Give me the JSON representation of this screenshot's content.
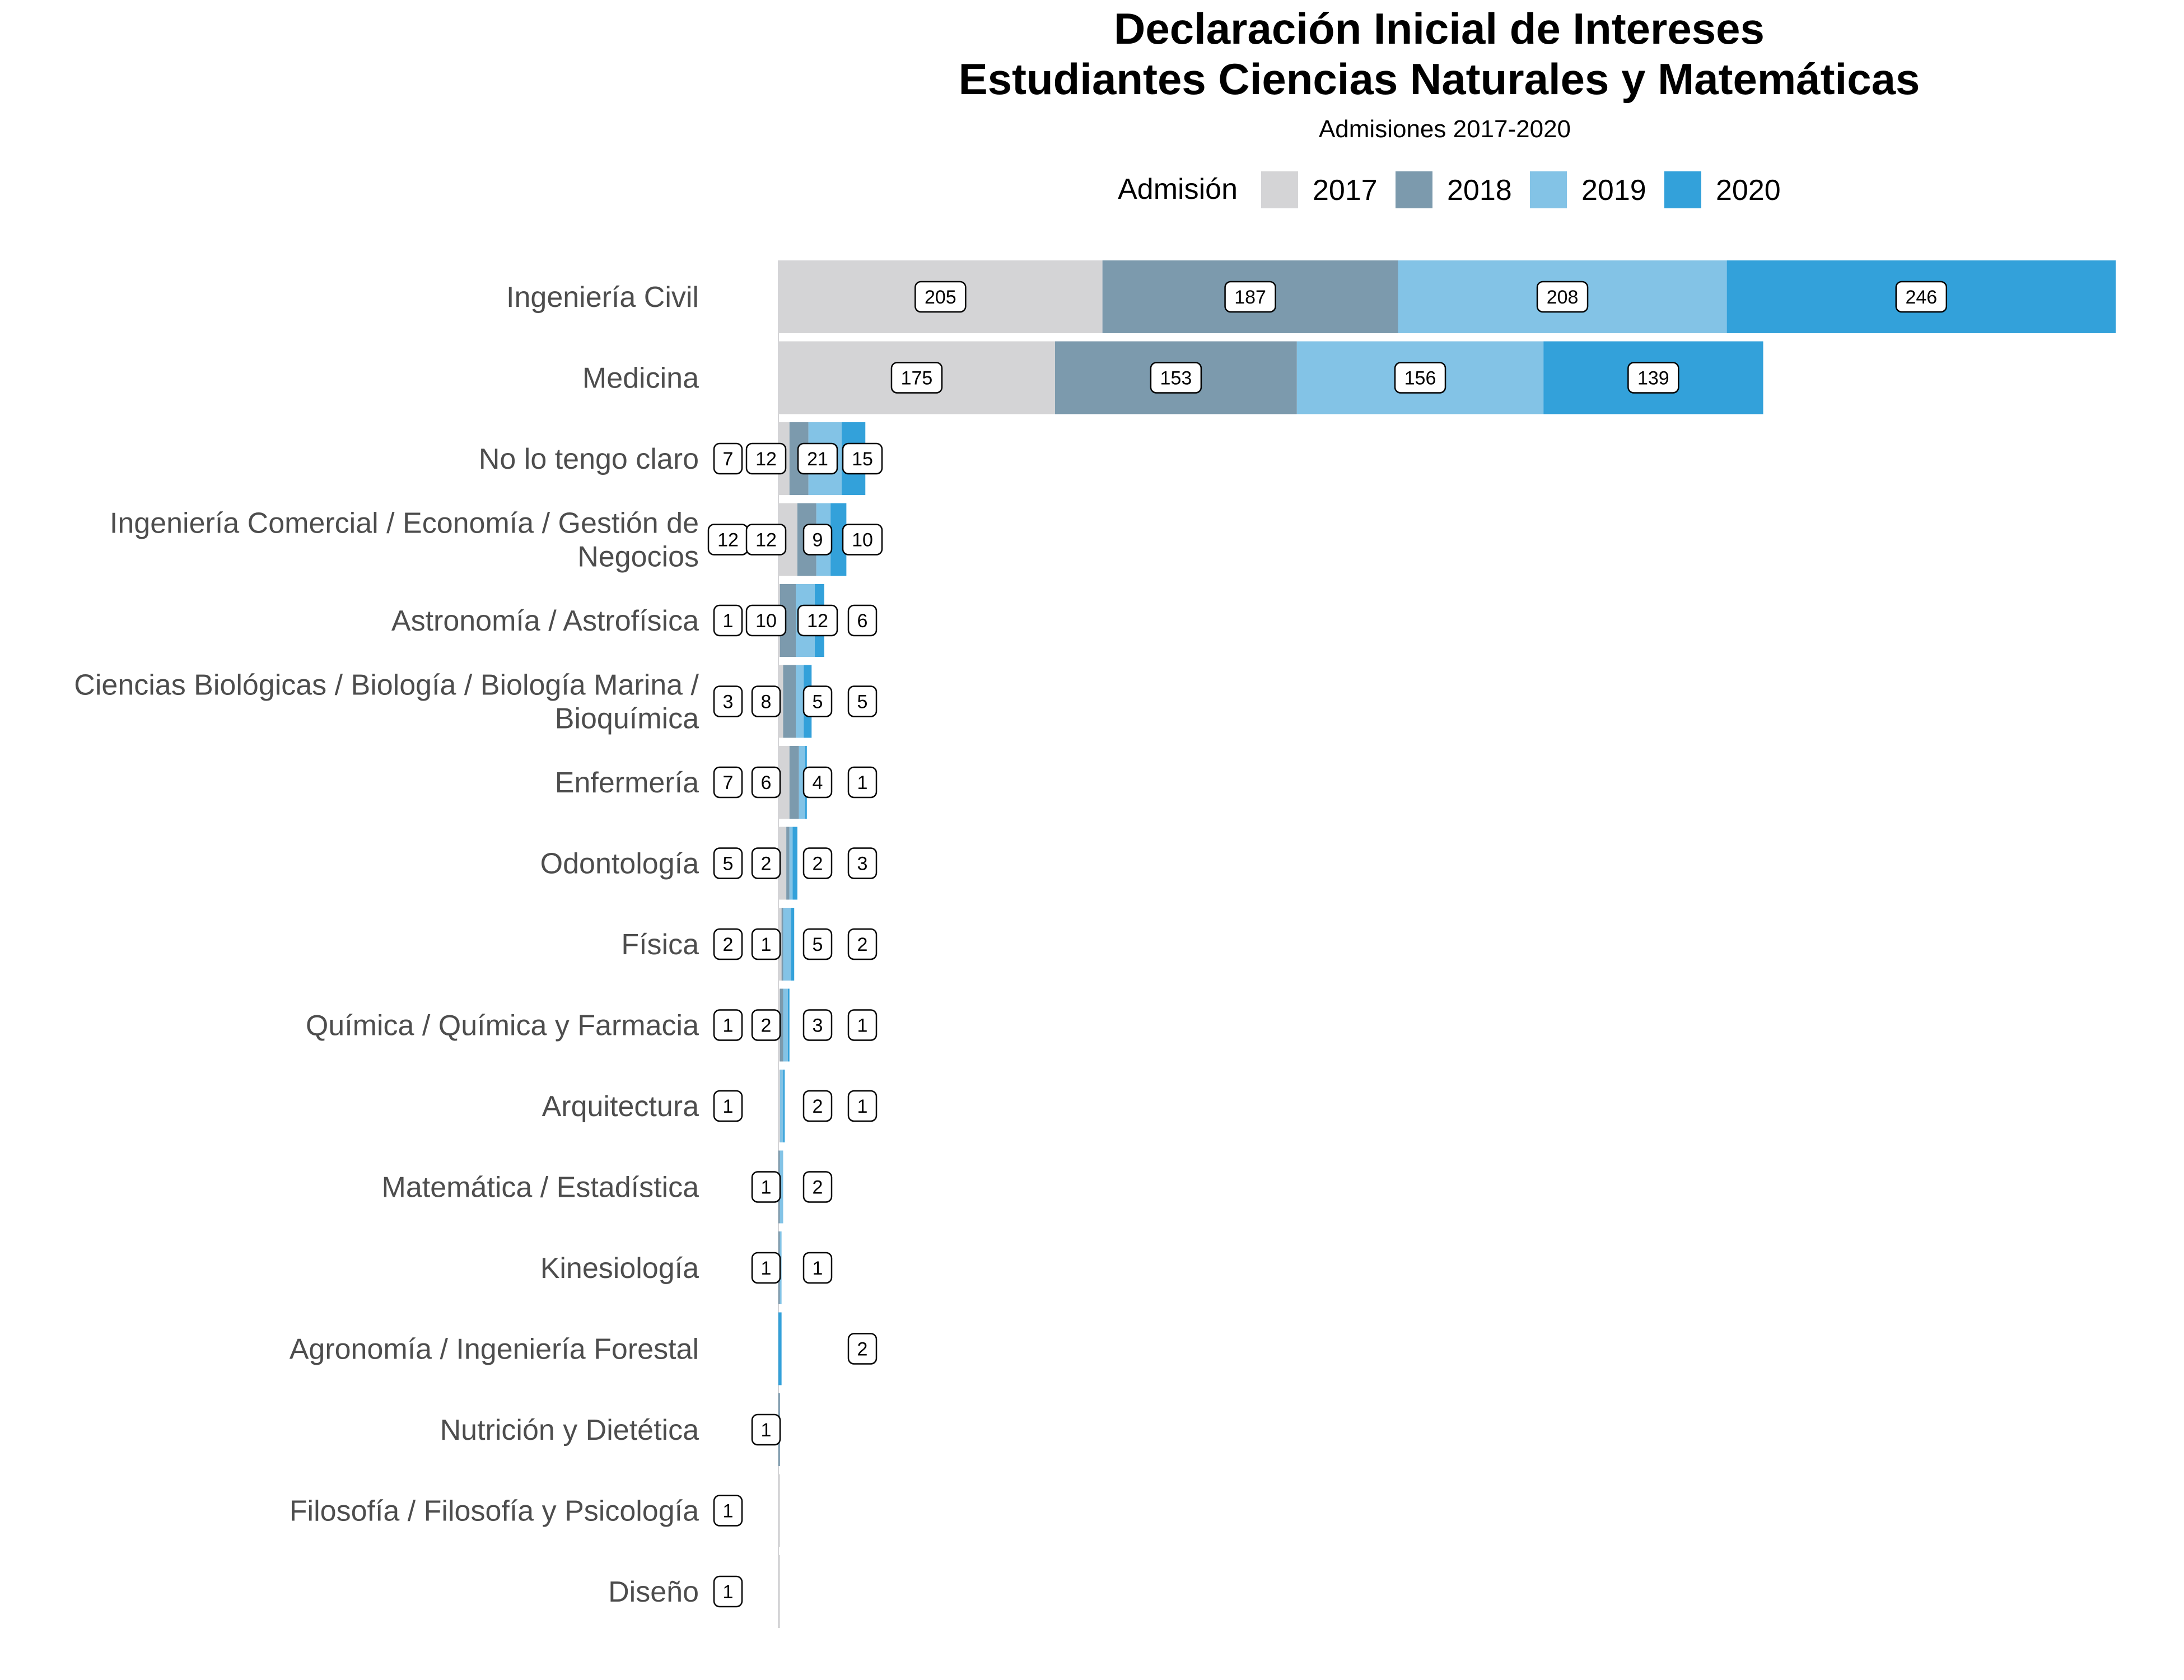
{
  "chart_data": {
    "type": "bar",
    "orientation": "horizontal",
    "stacked": true,
    "title": [
      "Declaración Inicial de Intereses",
      "Estudiantes Ciencias Naturales y Matemáticas"
    ],
    "subtitle": "Admisiones 2017-2020",
    "legend": {
      "title": "Admisión",
      "position": "top"
    },
    "series": [
      {
        "name": "2017",
        "color": "#d4d4d6"
      },
      {
        "name": "2018",
        "color": "#7c9aad"
      },
      {
        "name": "2019",
        "color": "#83c3e6"
      },
      {
        "name": "2020",
        "color": "#33a1da"
      }
    ],
    "categories": [
      {
        "label": [
          "Ingeniería Civil"
        ],
        "values": [
          205,
          187,
          208,
          246
        ]
      },
      {
        "label": [
          "Medicina"
        ],
        "values": [
          175,
          153,
          156,
          139
        ]
      },
      {
        "label": [
          "No lo tengo claro"
        ],
        "values": [
          7,
          12,
          21,
          15
        ]
      },
      {
        "label": [
          "Ingeniería Comercial / Economía / Gestión de",
          "Negocios"
        ],
        "values": [
          12,
          12,
          9,
          10
        ]
      },
      {
        "label": [
          "Astronomía / Astrofísica"
        ],
        "values": [
          1,
          10,
          12,
          6
        ]
      },
      {
        "label": [
          "Ciencias Biológicas / Biología / Biología Marina /",
          "Bioquímica"
        ],
        "values": [
          3,
          8,
          5,
          5
        ]
      },
      {
        "label": [
          "Enfermería"
        ],
        "values": [
          7,
          6,
          4,
          1
        ]
      },
      {
        "label": [
          "Odontología"
        ],
        "values": [
          5,
          2,
          2,
          3
        ]
      },
      {
        "label": [
          "Física"
        ],
        "values": [
          2,
          1,
          5,
          2
        ]
      },
      {
        "label": [
          "Química / Química y Farmacia"
        ],
        "values": [
          1,
          2,
          3,
          1
        ]
      },
      {
        "label": [
          "Arquitectura"
        ],
        "values": [
          1,
          0,
          2,
          1
        ]
      },
      {
        "label": [
          "Matemática / Estadística"
        ],
        "values": [
          0,
          1,
          2,
          0
        ]
      },
      {
        "label": [
          "Kinesiología"
        ],
        "values": [
          0,
          1,
          1,
          0
        ]
      },
      {
        "label": [
          "Agronomía / Ingeniería Forestal"
        ],
        "values": [
          0,
          0,
          0,
          2
        ]
      },
      {
        "label": [
          "Nutrición y Dietética"
        ],
        "values": [
          0,
          1,
          0,
          0
        ]
      },
      {
        "label": [
          "Filosofía / Filosofía y Psicología"
        ],
        "values": [
          1,
          0,
          0,
          0
        ]
      },
      {
        "label": [
          "Diseño"
        ],
        "values": [
          1,
          0,
          0,
          0
        ]
      }
    ],
    "xlim": [
      0,
      846
    ],
    "grid": false
  }
}
